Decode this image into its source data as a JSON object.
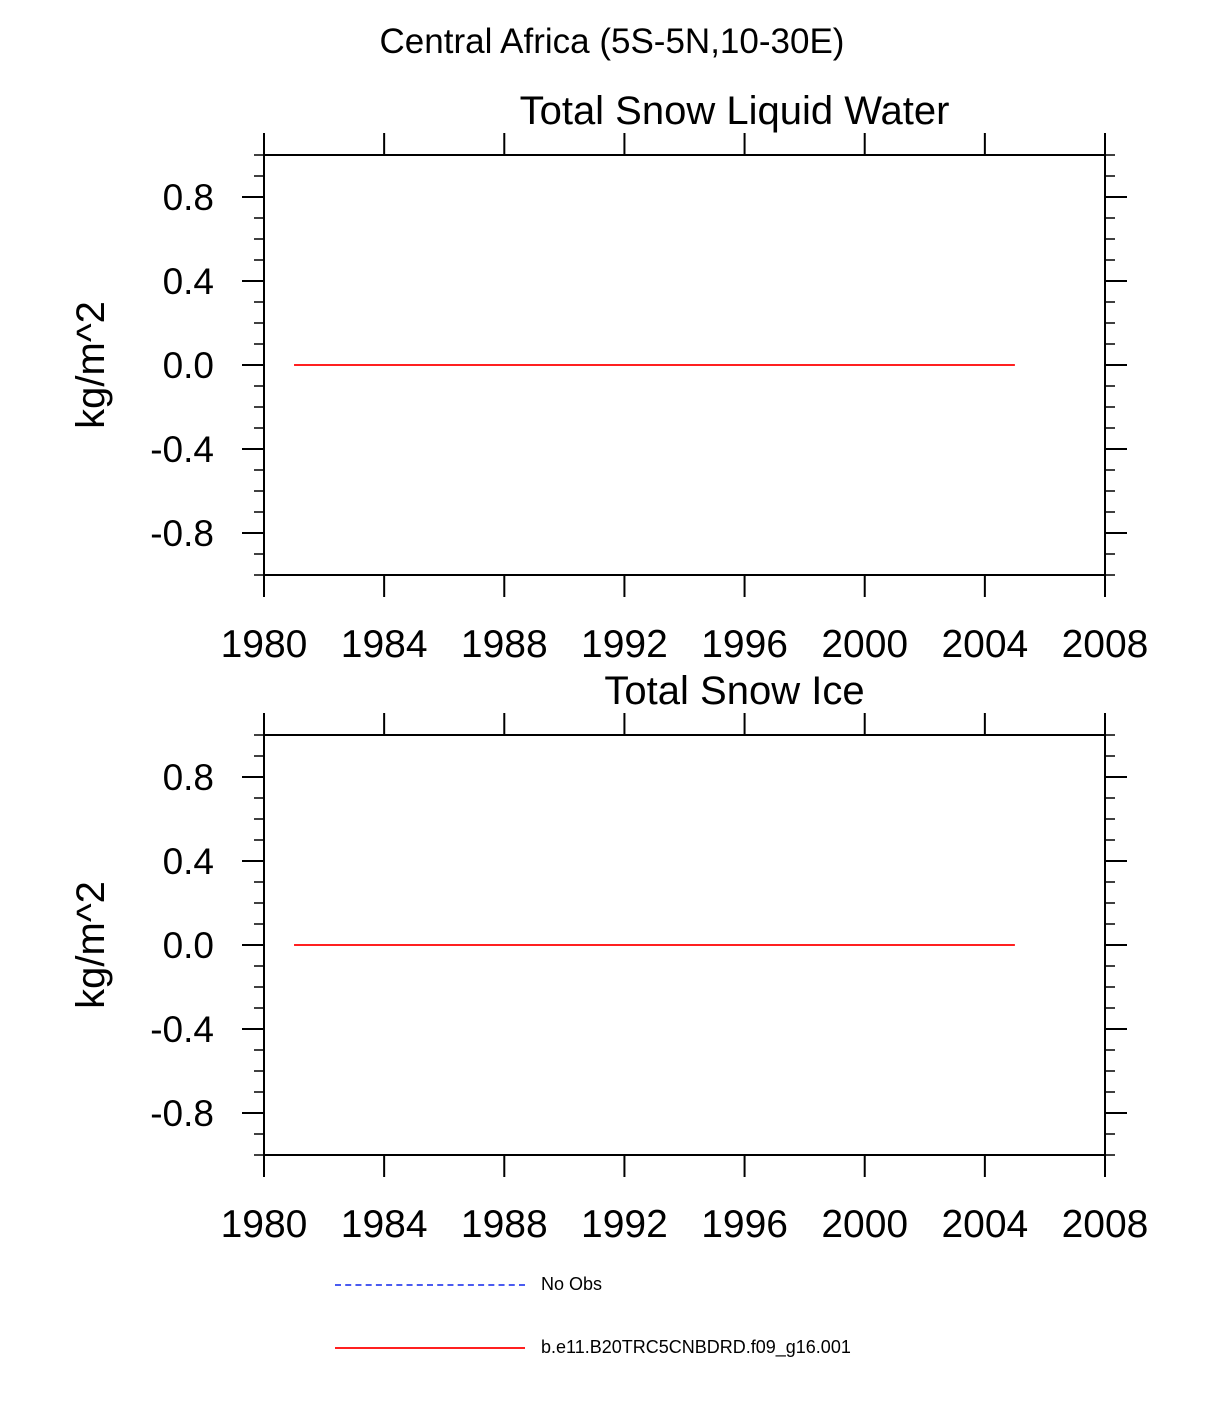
{
  "figure": {
    "supertitle": "Central Africa (5S-5N,10-30E)"
  },
  "chart_data": [
    {
      "type": "line",
      "title": "Total Snow Liquid Water",
      "xlabel": "",
      "ylabel": "kg/m^2",
      "xlim": [
        1980,
        2008
      ],
      "ylim": [
        -1.0,
        1.0
      ],
      "x_ticks": [
        1980,
        1984,
        1988,
        1992,
        1996,
        2000,
        2004,
        2008
      ],
      "x_tick_labels": [
        "1980",
        "1984",
        "1988",
        "1992",
        "1996",
        "2000",
        "2004",
        "2008"
      ],
      "y_ticks": [
        0.8,
        0.4,
        0.0,
        -0.4,
        -0.8
      ],
      "y_tick_labels": [
        "0.8",
        "0.4",
        "0.0",
        "-0.4",
        "-0.8"
      ],
      "grid": false,
      "series": [
        {
          "name": "b.e11.B20TRC5CNBDRD.f09_g16.001",
          "color": "#ff2020",
          "style": "solid",
          "x": [
            1981,
            2005
          ],
          "y": [
            0.0,
            0.0
          ]
        }
      ]
    },
    {
      "type": "line",
      "title": "Total Snow Ice",
      "xlabel": "",
      "ylabel": "kg/m^2",
      "xlim": [
        1980,
        2008
      ],
      "ylim": [
        -1.0,
        1.0
      ],
      "x_ticks": [
        1980,
        1984,
        1988,
        1992,
        1996,
        2000,
        2004,
        2008
      ],
      "x_tick_labels": [
        "1980",
        "1984",
        "1988",
        "1992",
        "1996",
        "2000",
        "2004",
        "2008"
      ],
      "y_ticks": [
        0.8,
        0.4,
        0.0,
        -0.4,
        -0.8
      ],
      "y_tick_labels": [
        "0.8",
        "0.4",
        "0.0",
        "-0.4",
        "-0.8"
      ],
      "grid": false,
      "series": [
        {
          "name": "b.e11.B20TRC5CNBDRD.f09_g16.001",
          "color": "#ff2020",
          "style": "solid",
          "x": [
            1981,
            2005
          ],
          "y": [
            0.0,
            0.0
          ]
        }
      ]
    }
  ],
  "legend": {
    "placement": "bottom",
    "entries": [
      {
        "label": "No Obs",
        "color": "#4a5bf0",
        "style": "dashed"
      },
      {
        "label": "b.e11.B20TRC5CNBDRD.f09_g16.001",
        "color": "#ff2020",
        "style": "solid"
      }
    ]
  }
}
